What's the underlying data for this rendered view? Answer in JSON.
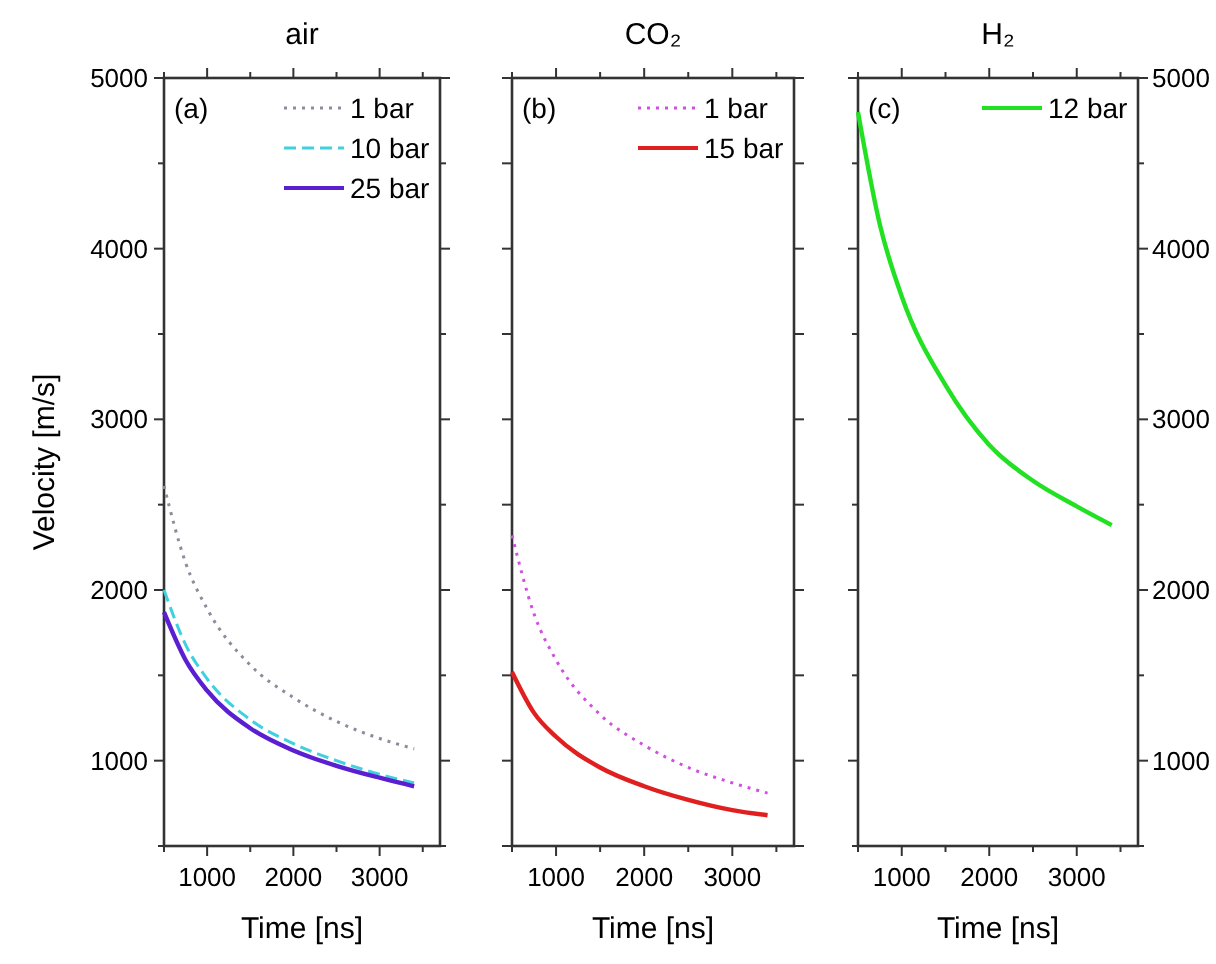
{
  "chart_data": [
    {
      "type": "line",
      "title": "air",
      "xlabel": "Time [ns]",
      "ylabel": "Velocity [m/s]",
      "annotations": [
        "(a)"
      ],
      "legend": "top right",
      "xlim": [
        500,
        3700
      ],
      "ylim": [
        500,
        5000
      ],
      "xticks": [
        {
          "value": 500,
          "label": null
        },
        1000,
        {
          "value": 1500,
          "label": null
        },
        2000,
        {
          "value": 2500,
          "label": null
        },
        3000,
        {
          "value": 3500,
          "label": null
        }
      ],
      "yticks": [
        {
          "value": 500,
          "label": null
        },
        1000,
        {
          "value": 1500,
          "label": null
        },
        2000,
        {
          "value": 2500,
          "label": null
        },
        3000,
        {
          "value": 3500,
          "label": null
        },
        4000,
        {
          "value": 4500,
          "label": null
        },
        5000
      ],
      "x": [
        500,
        750,
        1000,
        1500,
        2000,
        2500,
        3000,
        3400
      ],
      "series": [
        {
          "name": "1 bar",
          "color": "#8c8c9c",
          "line_style": "dotted",
          "values": [
            2610,
            2160,
            1890,
            1560,
            1370,
            1230,
            1130,
            1070
          ]
        },
        {
          "name": "10 bar",
          "color": "#40d0e0",
          "line_style": "dashed",
          "values": [
            2000,
            1680,
            1480,
            1240,
            1100,
            1000,
            920,
            870
          ]
        },
        {
          "name": "25 bar",
          "color": "#5a1fd0",
          "line_style": "solid",
          "values": [
            1870,
            1590,
            1410,
            1190,
            1060,
            970,
            900,
            850
          ]
        }
      ]
    },
    {
      "type": "line",
      "title": "CO₂",
      "xlabel": "Time [ns]",
      "annotations": [
        "(b)"
      ],
      "legend": "top right",
      "tick_labels": "x",
      "xlim": [
        500,
        3700
      ],
      "ylim": [
        500,
        5000
      ],
      "xticks": [
        {
          "value": 500,
          "label": null
        },
        1000,
        {
          "value": 1500,
          "label": null
        },
        2000,
        {
          "value": 2500,
          "label": null
        },
        3000,
        {
          "value": 3500,
          "label": null
        }
      ],
      "yticks": [
        500,
        1000,
        1500,
        2000,
        2500,
        3000,
        3500,
        4000,
        4500,
        5000
      ],
      "x": [
        500,
        750,
        1000,
        1500,
        2000,
        2500,
        3000,
        3400
      ],
      "series": [
        {
          "name": "1 bar",
          "color": "#d050e0",
          "line_style": "dotted",
          "values": [
            2320,
            1860,
            1590,
            1270,
            1090,
            960,
            870,
            810
          ]
        },
        {
          "name": "15 bar",
          "color": "#e02020",
          "line_style": "solid",
          "values": [
            1520,
            1280,
            1140,
            960,
            850,
            770,
            710,
            680
          ]
        }
      ]
    },
    {
      "type": "line",
      "title": "H₂",
      "xlabel": "Time [ns]",
      "annotations": [
        "(c)"
      ],
      "legend": "top right",
      "xlim": [
        500,
        3700
      ],
      "y2lim": [
        500,
        5000
      ],
      "xticks": [
        {
          "value": 500,
          "label": null
        },
        1000,
        {
          "value": 1500,
          "label": null
        },
        2000,
        {
          "value": 2500,
          "label": null
        },
        3000,
        {
          "value": 3500,
          "label": null
        }
      ],
      "y2ticks": [
        {
          "value": 500,
          "label": null
        },
        1000,
        {
          "value": 1500,
          "label": null
        },
        2000,
        {
          "value": 2500,
          "label": null
        },
        3000,
        {
          "value": 3500,
          "label": null
        },
        4000,
        {
          "value": 4500,
          "label": null
        },
        5000
      ],
      "x": [
        500,
        750,
        1000,
        1500,
        2000,
        2500,
        3000,
        3400
      ],
      "series": [
        {
          "name": "12 bar",
          "color": "#22e022",
          "line_style": "solid",
          "axis": "y2",
          "values": [
            4800,
            4140,
            3720,
            3200,
            2850,
            2640,
            2490,
            2380
          ]
        }
      ]
    }
  ]
}
